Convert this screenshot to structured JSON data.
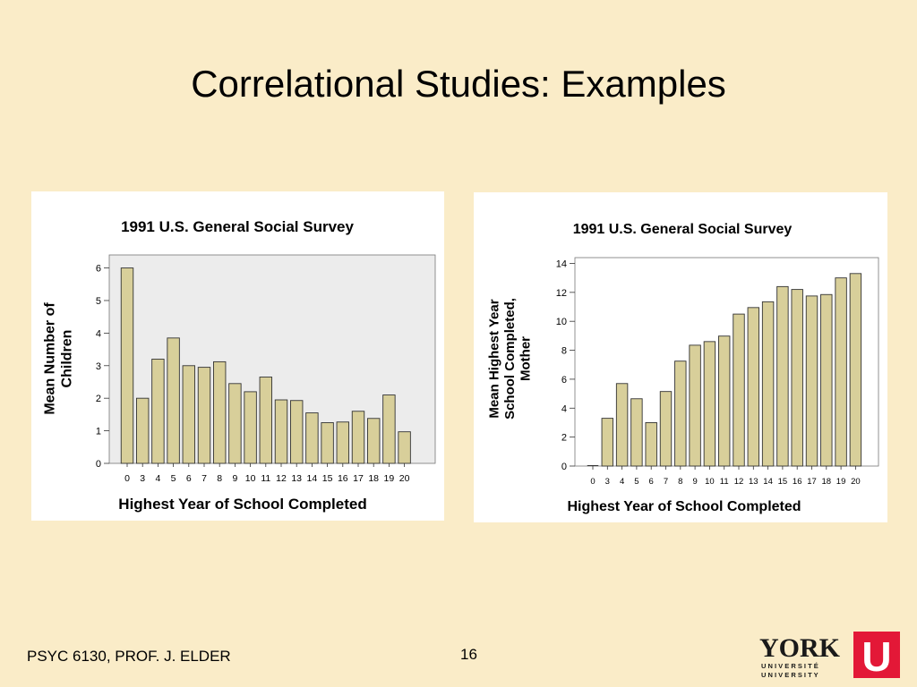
{
  "slide": {
    "title": "Correlational Studies:  Examples",
    "footer": "PSYC 6130, PROF. J. ELDER",
    "page_number": "16"
  },
  "logo": {
    "word": "YORK",
    "line1": "U N I V E R S I T É",
    "line2": "U N I V E R S I T Y",
    "mark": "U",
    "mark_color": "#e31837"
  },
  "colors": {
    "background": "#faecc8",
    "bar_fill": "#d8cf9a",
    "plot_bg": "#ececec"
  },
  "chart_data": [
    {
      "type": "bar",
      "title": "1991 U.S. General Social Survey",
      "xlabel": "Highest Year of School Completed",
      "ylabel_lines": [
        "Mean Number of",
        "Children"
      ],
      "categories": [
        "0",
        "3",
        "4",
        "5",
        "6",
        "7",
        "8",
        "9",
        "10",
        "11",
        "12",
        "13",
        "14",
        "15",
        "16",
        "17",
        "18",
        "19",
        "20"
      ],
      "values": [
        6.0,
        2.0,
        3.2,
        3.85,
        3.0,
        2.95,
        3.12,
        2.45,
        2.2,
        2.65,
        1.95,
        1.93,
        1.55,
        1.25,
        1.27,
        1.6,
        1.38,
        2.1,
        0.97
      ],
      "ylim": [
        0,
        6.4
      ],
      "yticks": [
        0,
        1,
        2,
        3,
        4,
        5,
        6
      ],
      "plot_background": "#ececec"
    },
    {
      "type": "bar",
      "title": "1991 U.S. General Social Survey",
      "xlabel": "Highest Year of School Completed",
      "ylabel_lines": [
        "Mean Highest Year",
        "School Completed,",
        "Mother"
      ],
      "categories": [
        "0",
        "3",
        "4",
        "5",
        "6",
        "7",
        "8",
        "9",
        "10",
        "11",
        "12",
        "13",
        "14",
        "15",
        "16",
        "17",
        "18",
        "19",
        "20"
      ],
      "values": [
        0,
        3.3,
        5.7,
        4.65,
        3.0,
        5.15,
        7.25,
        8.35,
        8.6,
        8.98,
        10.5,
        10.95,
        11.35,
        12.4,
        12.2,
        11.75,
        11.85,
        13.0,
        13.3
      ],
      "ylim": [
        0,
        14.4
      ],
      "yticks": [
        0,
        2,
        4,
        6,
        8,
        10,
        12,
        14
      ],
      "plot_background": "#ffffff"
    }
  ]
}
